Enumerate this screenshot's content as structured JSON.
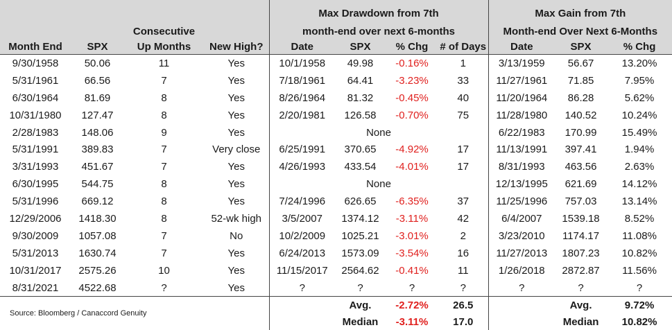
{
  "header": {
    "drawdown_title_line1": "Max Drawdown from 7th",
    "drawdown_title_line2": "month-end over next 6-months",
    "gain_title_line1": "Max Gain from 7th",
    "gain_title_line2": "Month-end Over Next 6-Months",
    "consecutive_line1": "Consecutive",
    "col_month_end": "Month End",
    "col_spx": "SPX",
    "col_up_months": "Up Months",
    "col_new_high": "New High?",
    "col_dd_date": "Date",
    "col_dd_spx": "SPX",
    "col_dd_pct": "% Chg",
    "col_dd_days": "# of Days",
    "col_mg_date": "Date",
    "col_mg_spx": "SPX",
    "col_mg_pct": "% Chg"
  },
  "rows": [
    {
      "month_end": "9/30/1958",
      "spx": "50.06",
      "up_months": "11",
      "new_high": "Yes",
      "dd_date": "10/1/1958",
      "dd_spx": "49.98",
      "dd_pct": "-0.16%",
      "dd_days": "1",
      "mg_date": "3/13/1959",
      "mg_spx": "56.67",
      "mg_pct": "13.20%"
    },
    {
      "month_end": "5/31/1961",
      "spx": "66.56",
      "up_months": "7",
      "new_high": "Yes",
      "dd_date": "7/18/1961",
      "dd_spx": "64.41",
      "dd_pct": "-3.23%",
      "dd_days": "33",
      "mg_date": "11/27/1961",
      "mg_spx": "71.85",
      "mg_pct": "7.95%"
    },
    {
      "month_end": "6/30/1964",
      "spx": "81.69",
      "up_months": "8",
      "new_high": "Yes",
      "dd_date": "8/26/1964",
      "dd_spx": "81.32",
      "dd_pct": "-0.45%",
      "dd_days": "40",
      "mg_date": "11/20/1964",
      "mg_spx": "86.28",
      "mg_pct": "5.62%"
    },
    {
      "month_end": "10/31/1980",
      "spx": "127.47",
      "up_months": "8",
      "new_high": "Yes",
      "dd_date": "2/20/1981",
      "dd_spx": "126.58",
      "dd_pct": "-0.70%",
      "dd_days": "75",
      "mg_date": "11/28/1980",
      "mg_spx": "140.52",
      "mg_pct": "10.24%"
    },
    {
      "month_end": "2/28/1983",
      "spx": "148.06",
      "up_months": "9",
      "new_high": "Yes",
      "dd_none": "None",
      "mg_date": "6/22/1983",
      "mg_spx": "170.99",
      "mg_pct": "15.49%"
    },
    {
      "month_end": "5/31/1991",
      "spx": "389.83",
      "up_months": "7",
      "new_high": "Very close",
      "dd_date": "6/25/1991",
      "dd_spx": "370.65",
      "dd_pct": "-4.92%",
      "dd_days": "17",
      "mg_date": "11/13/1991",
      "mg_spx": "397.41",
      "mg_pct": "1.94%"
    },
    {
      "month_end": "3/31/1993",
      "spx": "451.67",
      "up_months": "7",
      "new_high": "Yes",
      "dd_date": "4/26/1993",
      "dd_spx": "433.54",
      "dd_pct": "-4.01%",
      "dd_days": "17",
      "mg_date": "8/31/1993",
      "mg_spx": "463.56",
      "mg_pct": "2.63%"
    },
    {
      "month_end": "6/30/1995",
      "spx": "544.75",
      "up_months": "8",
      "new_high": "Yes",
      "dd_none": "None",
      "mg_date": "12/13/1995",
      "mg_spx": "621.69",
      "mg_pct": "14.12%"
    },
    {
      "month_end": "5/31/1996",
      "spx": "669.12",
      "up_months": "8",
      "new_high": "Yes",
      "dd_date": "7/24/1996",
      "dd_spx": "626.65",
      "dd_pct": "-6.35%",
      "dd_days": "37",
      "mg_date": "11/25/1996",
      "mg_spx": "757.03",
      "mg_pct": "13.14%"
    },
    {
      "month_end": "12/29/2006",
      "spx": "1418.30",
      "up_months": "8",
      "new_high": "52-wk high",
      "dd_date": "3/5/2007",
      "dd_spx": "1374.12",
      "dd_pct": "-3.11%",
      "dd_days": "42",
      "mg_date": "6/4/2007",
      "mg_spx": "1539.18",
      "mg_pct": "8.52%"
    },
    {
      "month_end": "9/30/2009",
      "spx": "1057.08",
      "up_months": "7",
      "new_high": "No",
      "dd_date": "10/2/2009",
      "dd_spx": "1025.21",
      "dd_pct": "-3.01%",
      "dd_days": "2",
      "mg_date": "3/23/2010",
      "mg_spx": "1174.17",
      "mg_pct": "11.08%"
    },
    {
      "month_end": "5/31/2013",
      "spx": "1630.74",
      "up_months": "7",
      "new_high": "Yes",
      "dd_date": "6/24/2013",
      "dd_spx": "1573.09",
      "dd_pct": "-3.54%",
      "dd_days": "16",
      "mg_date": "11/27/2013",
      "mg_spx": "1807.23",
      "mg_pct": "10.82%"
    },
    {
      "month_end": "10/31/2017",
      "spx": "2575.26",
      "up_months": "10",
      "new_high": "Yes",
      "dd_date": "11/15/2017",
      "dd_spx": "2564.62",
      "dd_pct": "-0.41%",
      "dd_days": "11",
      "mg_date": "1/26/2018",
      "mg_spx": "2872.87",
      "mg_pct": "11.56%"
    },
    {
      "month_end": "8/31/2021",
      "spx": "4522.68",
      "up_months": "?",
      "new_high": "Yes",
      "dd_date": "?",
      "dd_spx": "?",
      "dd_pct": "?",
      "dd_days": "?",
      "mg_date": "?",
      "mg_spx": "?",
      "mg_pct": "?"
    }
  ],
  "footer": {
    "source": "Source: Bloomberg / Canaccord Genuity",
    "avg_label": "Avg.",
    "avg_dd_pct": "-2.72%",
    "avg_dd_days": "26.5",
    "avg_mg_label": "Avg.",
    "avg_mg_pct": "9.72%",
    "median_label": "Median",
    "median_dd_pct": "-3.11%",
    "median_dd_days": "17.0",
    "median_mg_label": "Median",
    "median_mg_pct": "10.82%"
  },
  "colors": {
    "header_bg": "#d8d8d8",
    "negative": "#e0201e",
    "border": "#444444"
  }
}
